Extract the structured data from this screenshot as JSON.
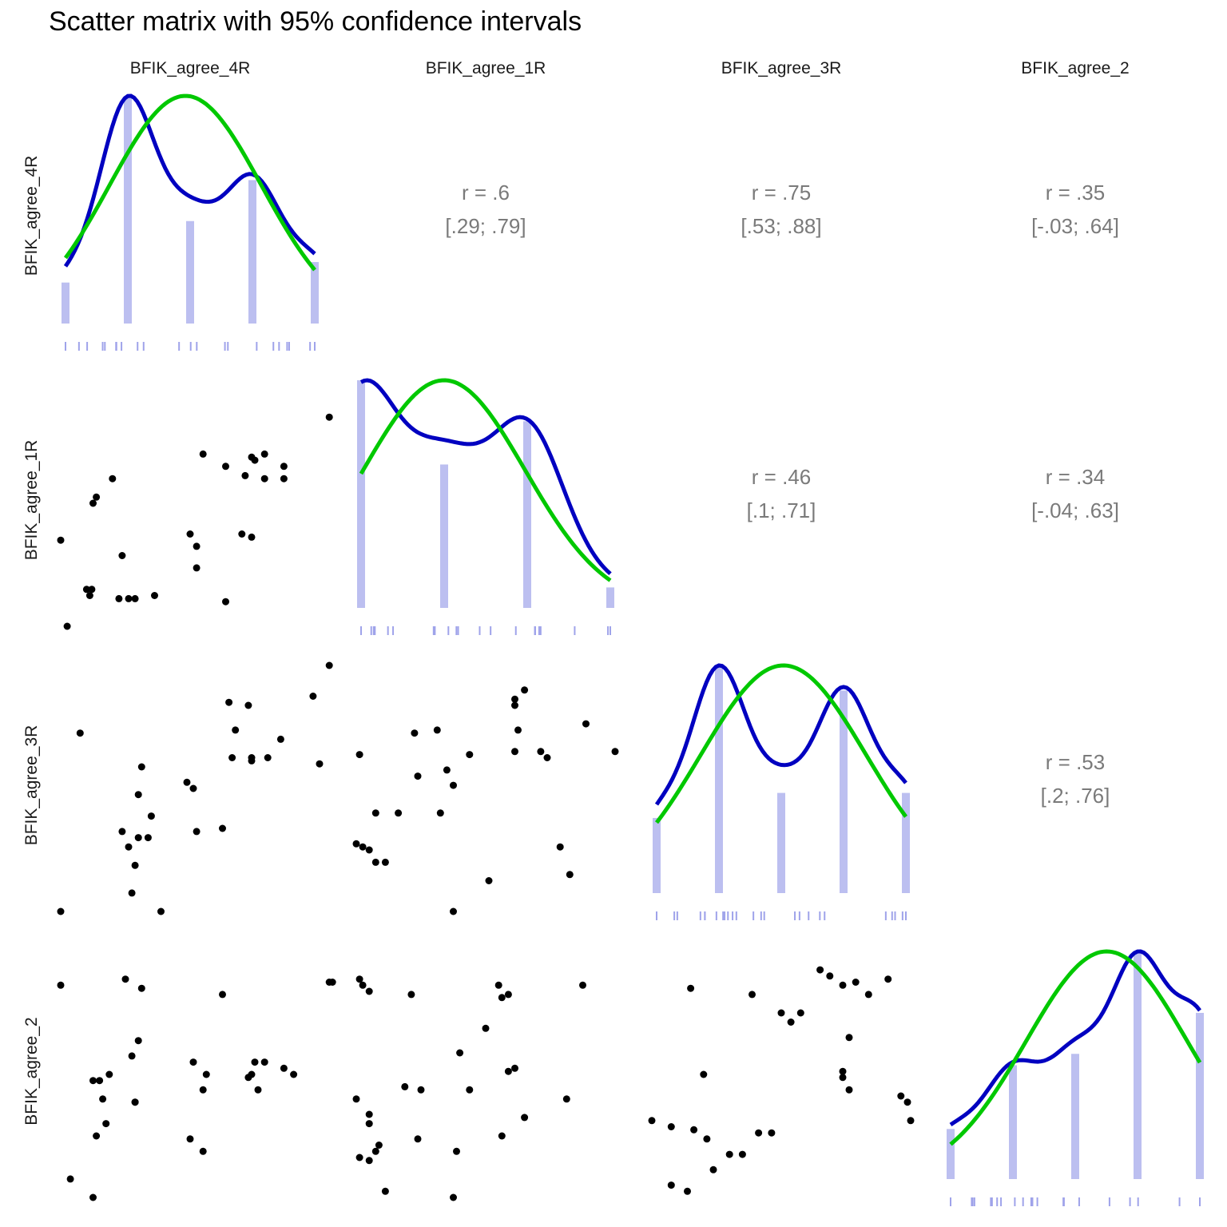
{
  "chart_data": {
    "type": "scatter-matrix",
    "title": "Scatter matrix with 95% confidence intervals",
    "variables": [
      "BFIK_agree_4R",
      "BFIK_agree_1R",
      "BFIK_agree_3R",
      "BFIK_agree_2"
    ],
    "scale": [
      1,
      5
    ],
    "colors": {
      "histogram": "#bcbff0",
      "rug": "#9fa3ea",
      "density": "#0000c0",
      "normal": "#00c800",
      "points": "#000000",
      "correlation_text": "#7a7a7a"
    },
    "correlations": [
      {
        "row": 0,
        "col": 1,
        "r_label": "r = .6",
        "ci_label": "[.29; .79]"
      },
      {
        "row": 0,
        "col": 2,
        "r_label": "r = .75",
        "ci_label": "[.53; .88]"
      },
      {
        "row": 0,
        "col": 3,
        "r_label": "r = .35",
        "ci_label": "[-.03; .64]"
      },
      {
        "row": 1,
        "col": 2,
        "r_label": "r = .46",
        "ci_label": "[.1; .71]"
      },
      {
        "row": 1,
        "col": 3,
        "r_label": "r = .34",
        "ci_label": "[-.04; .63]"
      },
      {
        "row": 2,
        "col": 3,
        "r_label": "r = .53",
        "ci_label": "[.2; .76]"
      }
    ],
    "histograms": [
      {
        "var": "BFIK_agree_4R",
        "bins": [
          1,
          2,
          3,
          4,
          5
        ],
        "heights": [
          0.18,
          1.0,
          0.45,
          0.63,
          0.27
        ]
      },
      {
        "var": "BFIK_agree_1R",
        "bins": [
          1,
          2,
          3,
          4
        ],
        "heights": [
          1.0,
          0.63,
          0.82,
          0.09
        ]
      },
      {
        "var": "BFIK_agree_3R",
        "bins": [
          1,
          2,
          3,
          4,
          5
        ],
        "heights": [
          0.33,
          1.0,
          0.44,
          0.89,
          0.44
        ]
      },
      {
        "var": "BFIK_agree_2",
        "bins": [
          1,
          2,
          3,
          4,
          5
        ],
        "heights": [
          0.22,
          0.5,
          0.55,
          0.99,
          0.73
        ]
      }
    ],
    "scatter": [
      {
        "x_var": "BFIK_agree_4R",
        "y_var": "BFIK_agree_1R",
        "points": [
          [
            1.0,
            2.4
          ],
          [
            1.1,
            1.0
          ],
          [
            1.5,
            3.0
          ],
          [
            1.8,
            3.4
          ],
          [
            1.55,
            3.1
          ],
          [
            1.4,
            1.6
          ],
          [
            1.48,
            1.6
          ],
          [
            1.45,
            1.5
          ],
          [
            1.95,
            2.15
          ],
          [
            1.9,
            1.45
          ],
          [
            2.05,
            1.45
          ],
          [
            2.15,
            1.45
          ],
          [
            2.45,
            1.5
          ],
          [
            3.0,
            2.5
          ],
          [
            3.1,
            2.3
          ],
          [
            3.2,
            3.8
          ],
          [
            3.1,
            1.95
          ],
          [
            3.55,
            1.4
          ],
          [
            3.55,
            3.6
          ],
          [
            3.8,
            2.5
          ],
          [
            3.95,
            2.45
          ],
          [
            3.85,
            3.45
          ],
          [
            3.95,
            3.75
          ],
          [
            4.0,
            3.7
          ],
          [
            4.15,
            3.8
          ],
          [
            4.15,
            3.4
          ],
          [
            4.45,
            3.6
          ],
          [
            4.45,
            3.4
          ],
          [
            5.15,
            4.4
          ]
        ]
      },
      {
        "x_var": "BFIK_agree_4R",
        "y_var": "BFIK_agree_3R",
        "points": [
          [
            1.0,
            1.0
          ],
          [
            1.3,
            3.9
          ],
          [
            1.95,
            2.3
          ],
          [
            2.05,
            2.05
          ],
          [
            2.25,
            3.35
          ],
          [
            2.4,
            2.55
          ],
          [
            2.1,
            1.3
          ],
          [
            2.15,
            1.75
          ],
          [
            2.2,
            2.2
          ],
          [
            2.2,
            2.9
          ],
          [
            2.35,
            2.2
          ],
          [
            2.55,
            1.0
          ],
          [
            2.95,
            3.1
          ],
          [
            3.05,
            3.0
          ],
          [
            3.1,
            2.3
          ],
          [
            3.5,
            2.35
          ],
          [
            3.6,
            4.4
          ],
          [
            3.7,
            3.95
          ],
          [
            3.65,
            3.5
          ],
          [
            3.9,
            4.35
          ],
          [
            3.95,
            3.45
          ],
          [
            3.95,
            3.5
          ],
          [
            4.2,
            3.5
          ],
          [
            4.4,
            3.8
          ],
          [
            4.9,
            4.5
          ],
          [
            5.0,
            3.4
          ],
          [
            5.15,
            5.0
          ]
        ]
      },
      {
        "x_var": "BFIK_agree_1R",
        "y_var": "BFIK_agree_3R",
        "points": [
          [
            1.0,
            2.1
          ],
          [
            1.05,
            3.55
          ],
          [
            1.1,
            2.05
          ],
          [
            1.2,
            2.0
          ],
          [
            1.3,
            1.8
          ],
          [
            1.3,
            2.6
          ],
          [
            1.45,
            1.8
          ],
          [
            1.65,
            2.6
          ],
          [
            1.9,
            3.9
          ],
          [
            1.95,
            3.2
          ],
          [
            2.25,
            3.95
          ],
          [
            2.3,
            2.6
          ],
          [
            2.4,
            3.3
          ],
          [
            2.5,
            1.0
          ],
          [
            2.5,
            3.05
          ],
          [
            2.75,
            3.55
          ],
          [
            3.05,
            1.5
          ],
          [
            3.45,
            4.35
          ],
          [
            3.45,
            4.45
          ],
          [
            3.5,
            3.95
          ],
          [
            3.6,
            4.6
          ],
          [
            3.45,
            3.6
          ],
          [
            3.85,
            3.6
          ],
          [
            3.95,
            3.5
          ],
          [
            4.15,
            2.05
          ],
          [
            4.3,
            1.6
          ],
          [
            4.55,
            4.05
          ],
          [
            5.0,
            3.6
          ]
        ]
      },
      {
        "x_var": "BFIK_agree_4R",
        "y_var": "BFIK_agree_2",
        "points": [
          [
            1.0,
            4.45
          ],
          [
            1.15,
            1.3
          ],
          [
            1.5,
            1.0
          ],
          [
            1.5,
            2.9
          ],
          [
            1.55,
            2.0
          ],
          [
            1.65,
            2.6
          ],
          [
            1.6,
            2.9
          ],
          [
            1.7,
            2.2
          ],
          [
            1.75,
            3.0
          ],
          [
            2.0,
            4.55
          ],
          [
            2.1,
            3.3
          ],
          [
            2.15,
            2.55
          ],
          [
            2.15,
            2.55
          ],
          [
            2.2,
            3.55
          ],
          [
            2.25,
            4.4
          ],
          [
            3.0,
            1.95
          ],
          [
            3.05,
            3.2
          ],
          [
            3.2,
            1.75
          ],
          [
            3.2,
            2.75
          ],
          [
            3.25,
            3.0
          ],
          [
            3.5,
            4.3
          ],
          [
            3.9,
            2.95
          ],
          [
            3.95,
            3.0
          ],
          [
            4.0,
            3.2
          ],
          [
            4.05,
            2.75
          ],
          [
            4.15,
            3.2
          ],
          [
            4.45,
            3.1
          ],
          [
            4.6,
            3.0
          ],
          [
            5.15,
            4.5
          ],
          [
            5.2,
            4.5
          ]
        ]
      },
      {
        "x_var": "BFIK_agree_1R",
        "y_var": "BFIK_agree_2",
        "points": [
          [
            1.0,
            2.6
          ],
          [
            1.05,
            1.65
          ],
          [
            1.05,
            4.55
          ],
          [
            1.1,
            4.45
          ],
          [
            1.2,
            2.35
          ],
          [
            1.2,
            2.2
          ],
          [
            1.2,
            1.6
          ],
          [
            1.2,
            4.35
          ],
          [
            1.3,
            1.75
          ],
          [
            1.35,
            1.85
          ],
          [
            1.45,
            1.1
          ],
          [
            1.75,
            2.8
          ],
          [
            1.95,
            1.95
          ],
          [
            1.85,
            4.3
          ],
          [
            2.0,
            2.75
          ],
          [
            2.5,
            1.0
          ],
          [
            2.55,
            1.75
          ],
          [
            2.6,
            3.35
          ],
          [
            2.75,
            2.75
          ],
          [
            3.0,
            3.75
          ],
          [
            3.2,
            4.45
          ],
          [
            3.25,
            4.25
          ],
          [
            3.25,
            2.0
          ],
          [
            3.35,
            4.3
          ],
          [
            3.35,
            3.05
          ],
          [
            3.45,
            3.1
          ],
          [
            3.6,
            2.3
          ],
          [
            4.25,
            2.6
          ],
          [
            4.5,
            4.45
          ]
        ]
      },
      {
        "x_var": "BFIK_agree_3R",
        "y_var": "BFIK_agree_2",
        "points": [
          [
            1.0,
            2.25
          ],
          [
            1.3,
            1.2
          ],
          [
            1.3,
            2.15
          ],
          [
            1.55,
            1.1
          ],
          [
            1.6,
            4.4
          ],
          [
            1.65,
            2.1
          ],
          [
            1.8,
            3.0
          ],
          [
            1.85,
            1.95
          ],
          [
            1.95,
            1.45
          ],
          [
            2.2,
            1.7
          ],
          [
            2.4,
            1.7
          ],
          [
            2.55,
            4.3
          ],
          [
            2.65,
            2.05
          ],
          [
            2.85,
            2.05
          ],
          [
            3.0,
            4.0
          ],
          [
            3.15,
            3.85
          ],
          [
            3.3,
            4.0
          ],
          [
            3.6,
            4.7
          ],
          [
            3.75,
            4.6
          ],
          [
            3.95,
            4.45
          ],
          [
            3.95,
            3.05
          ],
          [
            3.95,
            2.95
          ],
          [
            4.05,
            2.75
          ],
          [
            4.05,
            3.6
          ],
          [
            4.15,
            4.5
          ],
          [
            4.35,
            4.3
          ],
          [
            4.65,
            4.55
          ],
          [
            4.85,
            2.65
          ],
          [
            4.95,
            2.55
          ],
          [
            5.0,
            2.25
          ]
        ]
      }
    ]
  }
}
